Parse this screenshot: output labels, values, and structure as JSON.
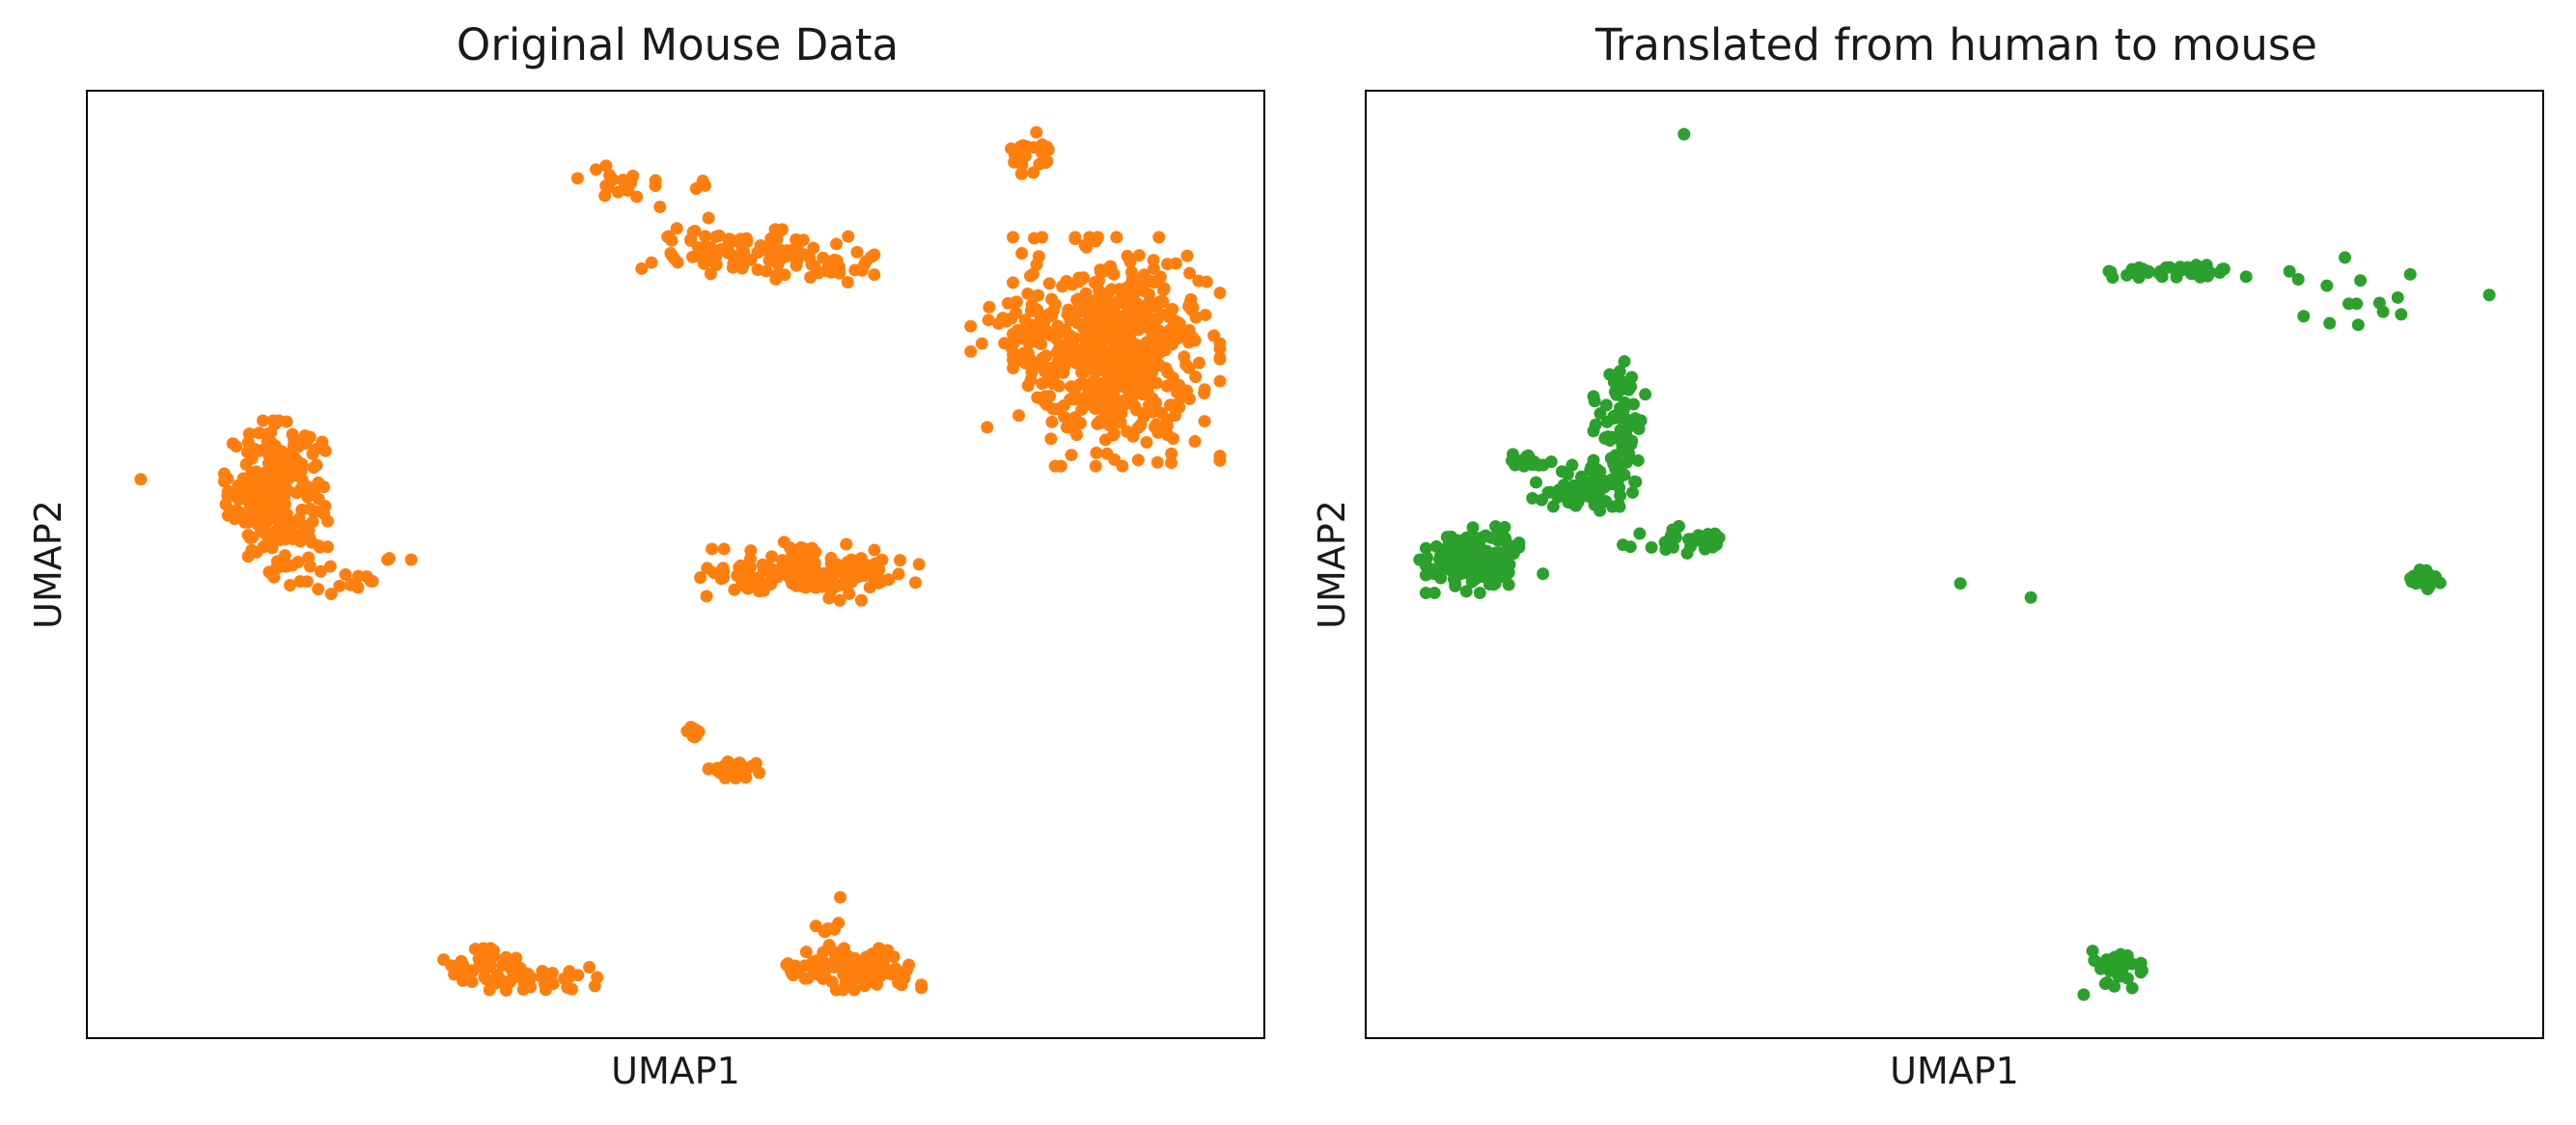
{
  "chart_data": [
    {
      "type": "scatter",
      "title": "Original Mouse Data",
      "xlabel": "UMAP1",
      "ylabel": "UMAP2",
      "xlim": [
        0,
        100
      ],
      "ylim": [
        0,
        100
      ],
      "grid": false,
      "legend": "none",
      "ticks": "hidden",
      "point_color": "#ff7f0e",
      "clusters": [
        {
          "x": 16.0,
          "y": 57.5,
          "sx": 2.0,
          "sy": 3.5,
          "n": 260
        },
        {
          "x": 20.5,
          "y": 48.5,
          "sx": 3.0,
          "sy": 1.0,
          "n": 14
        },
        {
          "x": 23.0,
          "y": 48.0,
          "sx": 1.5,
          "sy": 0.5,
          "n": 6
        },
        {
          "x": 47.0,
          "y": 90.5,
          "sx": 2.5,
          "sy": 1.0,
          "n": 20
        },
        {
          "x": 52.5,
          "y": 84.5,
          "sx": 2.0,
          "sy": 1.5,
          "n": 15
        },
        {
          "x": 57.0,
          "y": 82.8,
          "sx": 4.5,
          "sy": 1.2,
          "n": 90
        },
        {
          "x": 63.0,
          "y": 81.0,
          "sx": 2.5,
          "sy": 0.6,
          "n": 14
        },
        {
          "x": 80.5,
          "y": 93.5,
          "sx": 1.0,
          "sy": 1.0,
          "n": 22
        },
        {
          "x": 87.5,
          "y": 72.5,
          "sx": 4.0,
          "sy": 5.5,
          "n": 520
        },
        {
          "x": 79.5,
          "y": 75.0,
          "sx": 2.0,
          "sy": 1.8,
          "n": 40
        },
        {
          "x": 56.5,
          "y": 49.0,
          "sx": 2.0,
          "sy": 1.2,
          "n": 40
        },
        {
          "x": 63.0,
          "y": 49.5,
          "sx": 3.5,
          "sy": 1.5,
          "n": 100
        },
        {
          "x": 51.5,
          "y": 32.0,
          "sx": 0.4,
          "sy": 0.4,
          "n": 8
        },
        {
          "x": 55.0,
          "y": 28.5,
          "sx": 1.0,
          "sy": 0.5,
          "n": 30
        },
        {
          "x": 33.0,
          "y": 7.2,
          "sx": 2.0,
          "sy": 1.0,
          "n": 35
        },
        {
          "x": 38.5,
          "y": 6.3,
          "sx": 3.0,
          "sy": 0.7,
          "n": 45
        },
        {
          "x": 62.0,
          "y": 7.3,
          "sx": 1.5,
          "sy": 0.8,
          "n": 30
        },
        {
          "x": 66.5,
          "y": 7.2,
          "sx": 2.0,
          "sy": 1.0,
          "n": 80
        },
        {
          "x": 63.0,
          "y": 11.5,
          "sx": 0.5,
          "sy": 0.8,
          "n": 8
        }
      ],
      "single_points": [
        {
          "x": 4.5,
          "y": 59.0
        },
        {
          "x": 25.5,
          "y": 50.5
        },
        {
          "x": 27.5,
          "y": 50.5
        },
        {
          "x": 64.0,
          "y": 14.8
        },
        {
          "x": 86.0,
          "y": 80.0
        },
        {
          "x": 91.0,
          "y": 76.0
        },
        {
          "x": 76.5,
          "y": 64.5
        },
        {
          "x": 95.0,
          "y": 68.5
        }
      ]
    },
    {
      "type": "scatter",
      "title": "Translated from human to mouse",
      "xlabel": "UMAP1",
      "ylabel": "UMAP2",
      "xlim": [
        0,
        100
      ],
      "ylim": [
        0,
        100
      ],
      "grid": false,
      "legend": "none",
      "ticks": "hidden",
      "point_color": "#2ca02c",
      "clusters": [
        {
          "x": 9.0,
          "y": 50.5,
          "sx": 1.8,
          "sy": 1.6,
          "n": 170
        },
        {
          "x": 18.5,
          "y": 58.0,
          "sx": 2.0,
          "sy": 1.2,
          "n": 70
        },
        {
          "x": 13.5,
          "y": 61.0,
          "sx": 1.0,
          "sy": 0.6,
          "n": 18
        },
        {
          "x": 21.5,
          "y": 64.5,
          "sx": 1.0,
          "sy": 3.5,
          "n": 70
        },
        {
          "x": 27.0,
          "y": 52.5,
          "sx": 2.5,
          "sy": 0.7,
          "n": 30
        },
        {
          "x": 68.5,
          "y": 81.0,
          "sx": 3.2,
          "sy": 0.3,
          "n": 45
        },
        {
          "x": 84.5,
          "y": 78.5,
          "sx": 2.8,
          "sy": 1.8,
          "n": 14
        },
        {
          "x": 90.0,
          "y": 48.5,
          "sx": 0.6,
          "sy": 0.5,
          "n": 25
        },
        {
          "x": 63.5,
          "y": 7.3,
          "sx": 1.2,
          "sy": 1.0,
          "n": 30
        }
      ],
      "single_points": [
        {
          "x": 27.0,
          "y": 95.5
        },
        {
          "x": 50.5,
          "y": 48.0
        },
        {
          "x": 56.5,
          "y": 46.5
        },
        {
          "x": 61.0,
          "y": 4.5
        },
        {
          "x": 78.5,
          "y": 81.0
        },
        {
          "x": 95.5,
          "y": 78.5
        },
        {
          "x": 4.5,
          "y": 50.5
        },
        {
          "x": 15.0,
          "y": 49.0
        }
      ]
    }
  ]
}
